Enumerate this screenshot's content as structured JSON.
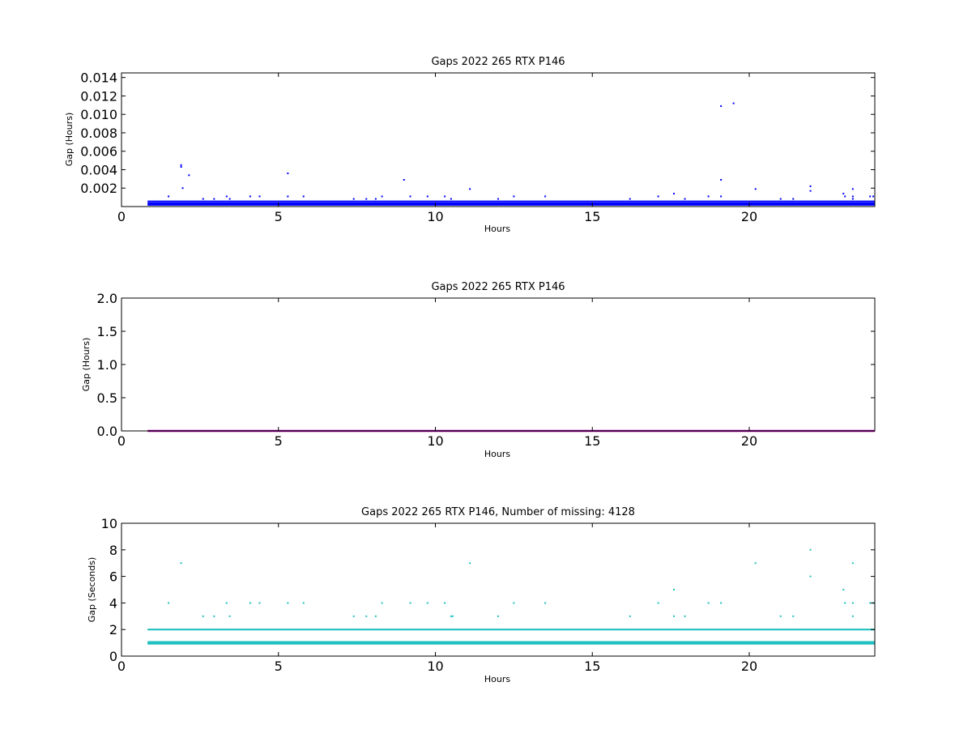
{
  "chart_data": [
    {
      "id": "top",
      "type": "scatter",
      "title": "Gaps 2022 265 RTX  P146",
      "xlabel": "Hours",
      "ylabel": "Gap (Hours)",
      "xlim": [
        0,
        24
      ],
      "ylim": [
        0,
        0.0145
      ],
      "xticks": [
        0,
        5,
        10,
        15,
        20
      ],
      "xtick_labels": [
        "0",
        "5",
        "10",
        "15",
        "20"
      ],
      "yticks": [
        0.002,
        0.004,
        0.006,
        0.008,
        0.01,
        0.012,
        0.014
      ],
      "ytick_labels": [
        "0.002",
        "0.004",
        "0.006",
        "0.008",
        "0.010",
        "0.012",
        "0.014"
      ],
      "grid": false,
      "marker_color": "#0000ff",
      "series": [
        {
          "band": {
            "x_range": [
              0.83,
              24
            ],
            "y_values": [
              0.00028,
              0.00056
            ]
          },
          "points": [
            [
              1.5,
              0.0011
            ],
            [
              1.9,
              0.0045
            ],
            [
              1.9,
              0.0043
            ],
            [
              1.95,
              0.002
            ],
            [
              2.15,
              0.0034
            ],
            [
              2.6,
              0.00083
            ],
            [
              2.95,
              0.00083
            ],
            [
              3.35,
              0.0011
            ],
            [
              3.45,
              0.00083
            ],
            [
              4.1,
              0.0011
            ],
            [
              4.4,
              0.0011
            ],
            [
              5.3,
              0.0036
            ],
            [
              5.3,
              0.0011
            ],
            [
              5.8,
              0.0011
            ],
            [
              7.4,
              0.00083
            ],
            [
              7.8,
              0.00083
            ],
            [
              8.1,
              0.00083
            ],
            [
              8.3,
              0.0011
            ],
            [
              9.0,
              0.0029
            ],
            [
              9.2,
              0.0011
            ],
            [
              9.75,
              0.0011
            ],
            [
              10.3,
              0.0011
            ],
            [
              10.5,
              0.00083
            ],
            [
              11.1,
              0.0019
            ],
            [
              12.0,
              0.00083
            ],
            [
              12.5,
              0.0011
            ],
            [
              13.5,
              0.0011
            ],
            [
              16.2,
              0.00083
            ],
            [
              17.1,
              0.0011
            ],
            [
              17.6,
              0.0014
            ],
            [
              17.95,
              0.00083
            ],
            [
              18.7,
              0.0011
            ],
            [
              19.1,
              0.0109
            ],
            [
              19.1,
              0.0029
            ],
            [
              19.1,
              0.0011
            ],
            [
              19.5,
              0.0112
            ],
            [
              20.2,
              0.0019
            ],
            [
              21.0,
              0.00083
            ],
            [
              21.4,
              0.00083
            ],
            [
              21.95,
              0.0022
            ],
            [
              21.95,
              0.0017
            ],
            [
              23.0,
              0.0014
            ],
            [
              23.05,
              0.0011
            ],
            [
              23.3,
              0.0019
            ],
            [
              23.3,
              0.0011
            ],
            [
              23.3,
              0.00083
            ],
            [
              23.85,
              0.0011
            ],
            [
              23.95,
              0.0011
            ]
          ]
        }
      ]
    },
    {
      "id": "middle",
      "type": "scatter",
      "title": "Gaps 2022 265 RTX  P146",
      "xlabel": "Hours",
      "ylabel": "Gap (Hours)",
      "xlim": [
        0,
        24
      ],
      "ylim": [
        0,
        2.0
      ],
      "xticks": [
        0,
        5,
        10,
        15,
        20
      ],
      "xtick_labels": [
        "0",
        "5",
        "10",
        "15",
        "20"
      ],
      "yticks": [
        0.0,
        0.5,
        1.0,
        1.5,
        2.0
      ],
      "ytick_labels": [
        "0.0",
        "0.5",
        "1.0",
        "1.5",
        "2.0"
      ],
      "grid": false,
      "marker_color": "#a000a0",
      "series": [
        {
          "band": {
            "x_range": [
              0.83,
              24
            ],
            "y_values": [
              0.0
            ]
          },
          "points": []
        }
      ]
    },
    {
      "id": "bottom",
      "type": "scatter",
      "title": "Gaps 2022 265 RTX  P146, Number of missing: 4128",
      "xlabel": "Hours",
      "ylabel": "Gap (Seconds)",
      "xlim": [
        0,
        24
      ],
      "ylim": [
        0,
        10
      ],
      "xticks": [
        0,
        5,
        10,
        15,
        20
      ],
      "xtick_labels": [
        "0",
        "5",
        "10",
        "15",
        "20"
      ],
      "yticks": [
        0,
        2,
        4,
        6,
        8,
        10
      ],
      "ytick_labels": [
        "0",
        "2",
        "4",
        "6",
        "8",
        "10"
      ],
      "grid": false,
      "marker_color": "#20c0c0",
      "series": [
        {
          "band": {
            "x_range": [
              0.83,
              24
            ],
            "y_values": [
              1,
              2
            ]
          },
          "points": [
            [
              1.5,
              4
            ],
            [
              1.9,
              7
            ],
            [
              2.6,
              3
            ],
            [
              2.95,
              3
            ],
            [
              3.35,
              4
            ],
            [
              3.45,
              3
            ],
            [
              4.1,
              4
            ],
            [
              4.4,
              4
            ],
            [
              5.3,
              4
            ],
            [
              5.8,
              4
            ],
            [
              7.4,
              3
            ],
            [
              7.8,
              3
            ],
            [
              8.1,
              3
            ],
            [
              8.3,
              4
            ],
            [
              9.2,
              4
            ],
            [
              9.75,
              4
            ],
            [
              10.3,
              4
            ],
            [
              10.5,
              3
            ],
            [
              10.55,
              3
            ],
            [
              11.1,
              7
            ],
            [
              12.0,
              3
            ],
            [
              12.5,
              4
            ],
            [
              13.5,
              4
            ],
            [
              16.2,
              3
            ],
            [
              17.1,
              4
            ],
            [
              17.6,
              5
            ],
            [
              17.6,
              3
            ],
            [
              17.95,
              3
            ],
            [
              18.7,
              4
            ],
            [
              19.1,
              4
            ],
            [
              20.2,
              7
            ],
            [
              21.0,
              3
            ],
            [
              21.4,
              3
            ],
            [
              21.95,
              8
            ],
            [
              21.95,
              6
            ],
            [
              23.0,
              5
            ],
            [
              23.05,
              4
            ],
            [
              23.3,
              7
            ],
            [
              23.3,
              4
            ],
            [
              23.3,
              3
            ],
            [
              23.85,
              4
            ],
            [
              23.95,
              4
            ]
          ]
        }
      ]
    }
  ]
}
